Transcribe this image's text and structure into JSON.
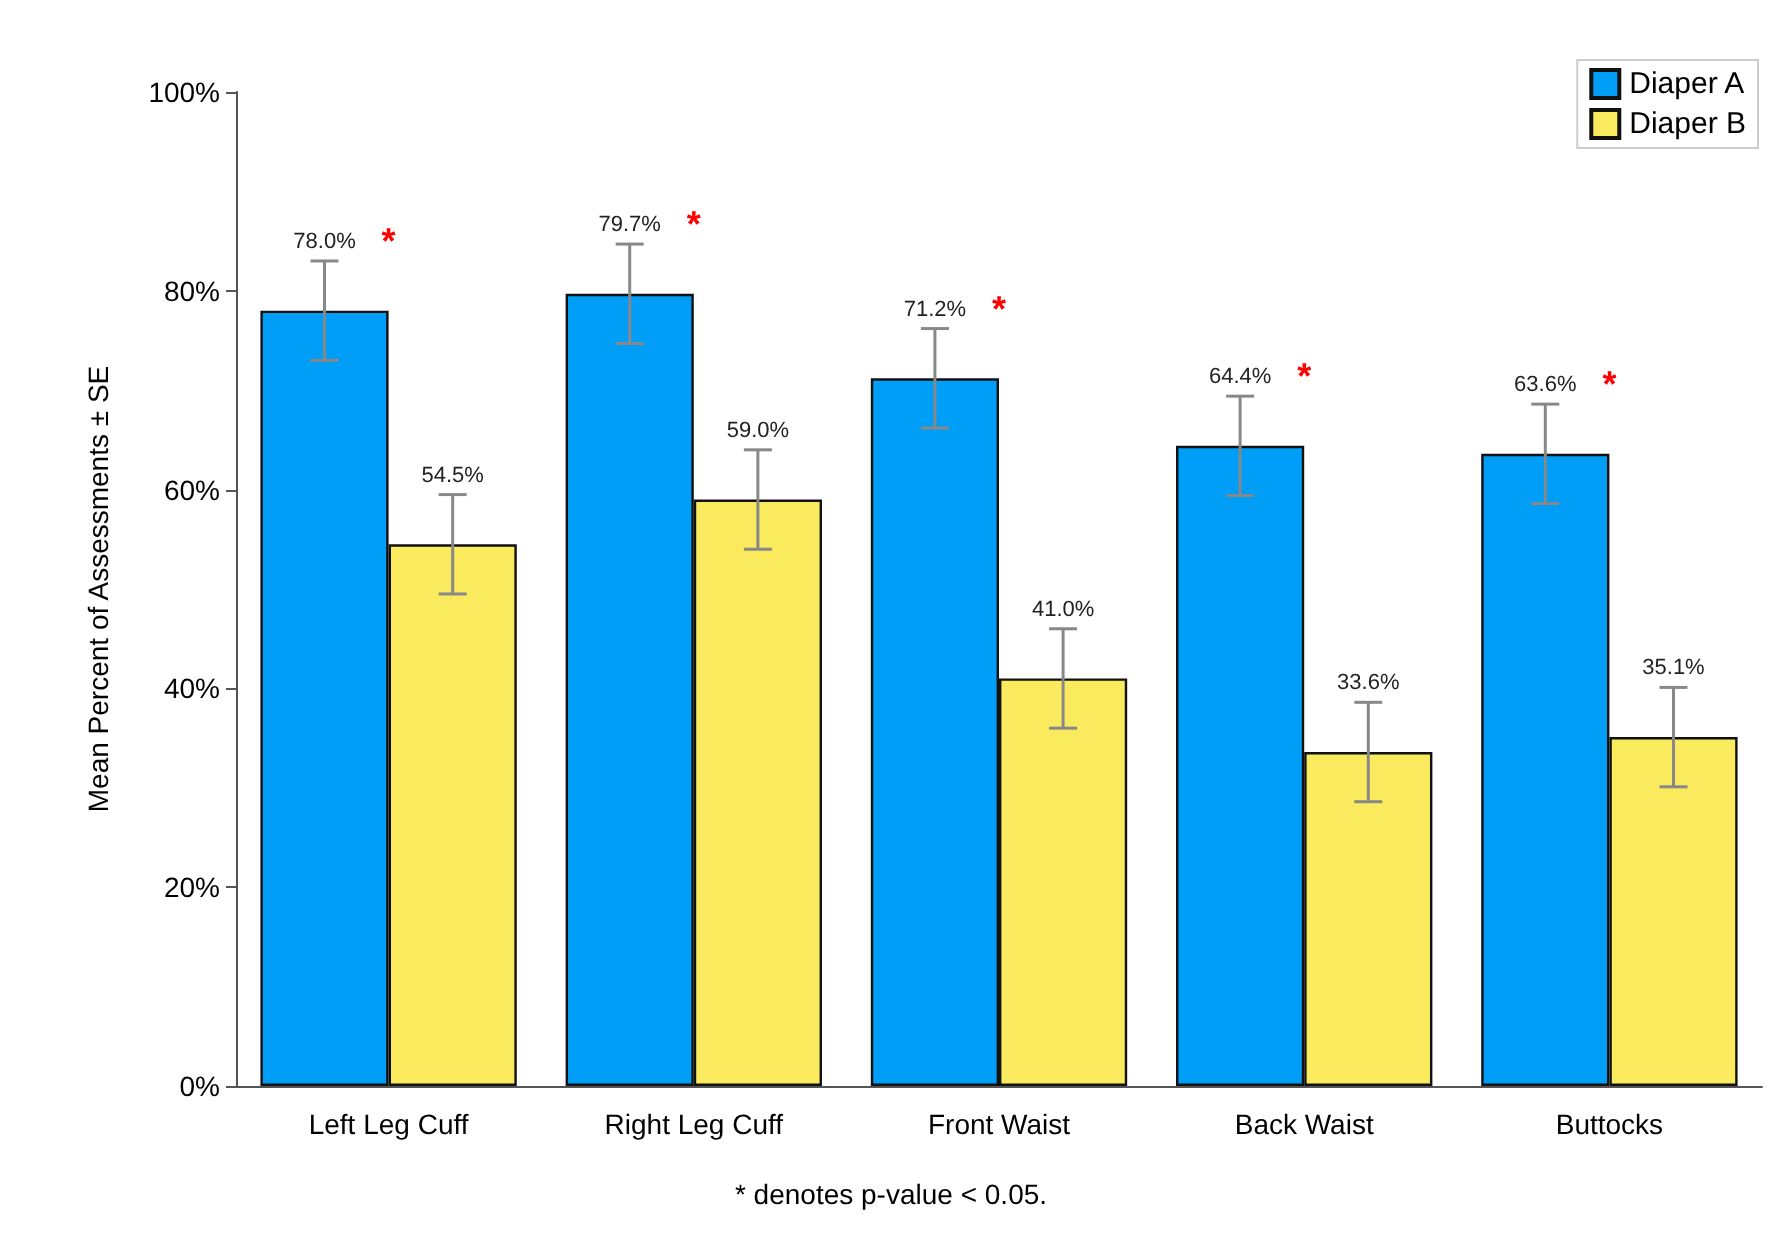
{
  "chart_data": {
    "type": "bar",
    "ylabel": "Mean Percent of Assessments ± SE",
    "categories": [
      "Left Leg Cuff",
      "Right Leg Cuff",
      "Front Waist",
      "Back Waist",
      "Buttocks"
    ],
    "series": [
      {
        "name": "Diaper A",
        "color": "#009ef7",
        "values": [
          78.0,
          79.7,
          71.2,
          64.4,
          63.6
        ],
        "errors": [
          5,
          5,
          5,
          5,
          5
        ],
        "value_labels": [
          "78.0%",
          "79.7%",
          "71.2%",
          "64.4%",
          "63.6%"
        ]
      },
      {
        "name": "Diaper B",
        "color": "#f9eb5d",
        "values": [
          54.5,
          59.0,
          41.0,
          33.6,
          35.1
        ],
        "errors": [
          5,
          5,
          5,
          5,
          5
        ],
        "value_labels": [
          "54.5%",
          "59.0%",
          "41.0%",
          "33.6%",
          "35.1%"
        ]
      }
    ],
    "ylim": [
      0,
      100
    ],
    "yticks": [
      {
        "value": 0,
        "label": "0%"
      },
      {
        "value": 20,
        "label": "20%"
      },
      {
        "value": 40,
        "label": "40%"
      },
      {
        "value": 60,
        "label": "60%"
      },
      {
        "value": 80,
        "label": "80%"
      },
      {
        "value": 100,
        "label": "100%"
      }
    ],
    "grid": false,
    "legend": "top right",
    "annotations": [
      "*",
      "*",
      "*",
      "*",
      "*",
      "* denotes p-value < 0.05."
    ]
  }
}
